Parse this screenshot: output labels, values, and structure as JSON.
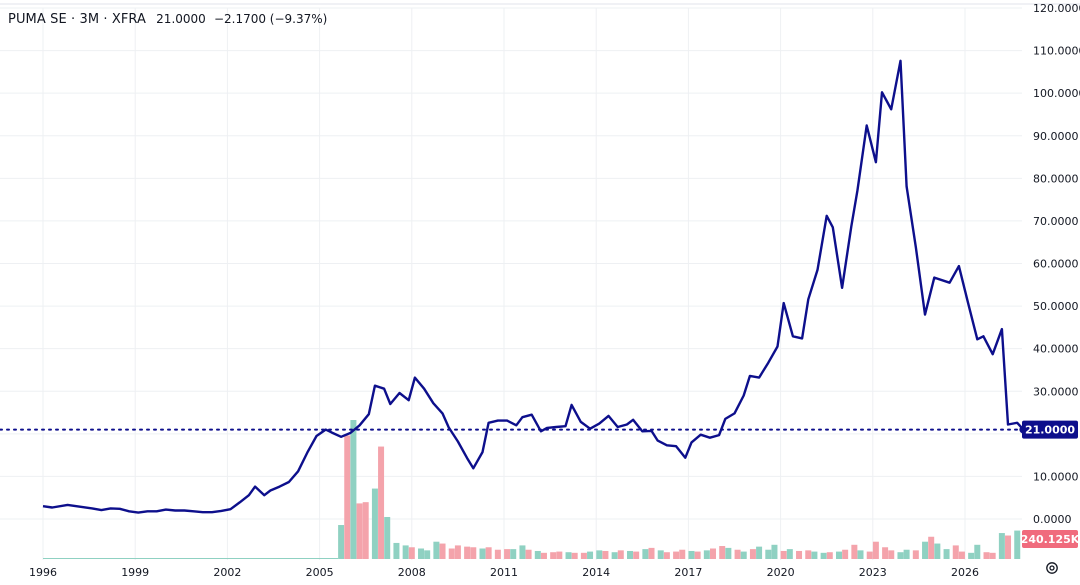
{
  "legend": {
    "symbol": "PUMA SE · 3M · XFRA",
    "last": "21.0000",
    "change": "−2.1700 (−9.37%)"
  },
  "price_badge": "21.0000",
  "volume_badge": "240.125K",
  "colors": {
    "line": "#0d0f8c",
    "grid": "#eef0f3",
    "axis_text": "#131722",
    "badge_price": "#0d0f8c",
    "badge_volume": "#f06b7d",
    "vol_up": "#8fd1c2",
    "vol_down": "#f4a3ab"
  },
  "icons": {
    "settings": "gear-icon"
  },
  "chart_data": {
    "type": "line",
    "y_ticks": [
      "0.0000",
      "10.0000",
      "20.0000",
      "30.0000",
      "40.0000",
      "50.0000",
      "60.0000",
      "70.0000",
      "80.0000",
      "90.0000",
      "100.0000",
      "110.0000",
      "120.0000"
    ],
    "x_ticks": [
      "1996",
      "1999",
      "2002",
      "2005",
      "2008",
      "2011",
      "2014",
      "2017",
      "2020",
      "2023",
      "2026"
    ],
    "ylim": [
      0,
      120
    ],
    "last_value": 21.0,
    "grid": true,
    "series": [
      {
        "values": [
          [
            1996.0,
            3.0
          ],
          [
            1996.3,
            2.7
          ],
          [
            1996.8,
            3.3
          ],
          [
            1997.2,
            2.9
          ],
          [
            1997.6,
            2.5
          ],
          [
            1997.9,
            2.1
          ],
          [
            1998.2,
            2.5
          ],
          [
            1998.5,
            2.4
          ],
          [
            1998.8,
            1.8
          ],
          [
            1999.1,
            1.5
          ],
          [
            1999.4,
            1.8
          ],
          [
            1999.7,
            1.8
          ],
          [
            2000.0,
            2.2
          ],
          [
            2000.3,
            2.0
          ],
          [
            2000.6,
            2.0
          ],
          [
            2000.9,
            1.8
          ],
          [
            2001.2,
            1.6
          ],
          [
            2001.5,
            1.6
          ],
          [
            2001.8,
            1.9
          ],
          [
            2002.1,
            2.3
          ],
          [
            2002.4,
            3.9
          ],
          [
            2002.7,
            5.6
          ],
          [
            2002.9,
            7.6
          ],
          [
            2003.2,
            5.6
          ],
          [
            2003.4,
            6.7
          ],
          [
            2003.7,
            7.6
          ],
          [
            2004.0,
            8.7
          ],
          [
            2004.3,
            11.2
          ],
          [
            2004.6,
            15.6
          ],
          [
            2004.9,
            19.5
          ],
          [
            2005.2,
            21.0
          ],
          [
            2005.4,
            20.3
          ],
          [
            2005.7,
            19.3
          ],
          [
            2006.0,
            20.2
          ],
          [
            2006.3,
            22.0
          ],
          [
            2006.6,
            24.6
          ],
          [
            2006.8,
            31.3
          ],
          [
            2007.1,
            30.6
          ],
          [
            2007.3,
            27.0
          ],
          [
            2007.6,
            29.6
          ],
          [
            2007.9,
            27.9
          ],
          [
            2008.1,
            33.2
          ],
          [
            2008.4,
            30.6
          ],
          [
            2008.7,
            27.2
          ],
          [
            2009.0,
            24.8
          ],
          [
            2009.2,
            21.5
          ],
          [
            2009.5,
            18.2
          ],
          [
            2009.8,
            14.3
          ],
          [
            2010.0,
            11.9
          ],
          [
            2010.3,
            15.7
          ],
          [
            2010.5,
            22.6
          ],
          [
            2010.8,
            23.1
          ],
          [
            2011.1,
            23.1
          ],
          [
            2011.4,
            22.0
          ],
          [
            2011.6,
            23.9
          ],
          [
            2011.9,
            24.5
          ],
          [
            2012.2,
            20.6
          ],
          [
            2012.4,
            21.4
          ],
          [
            2012.7,
            21.6
          ],
          [
            2013.0,
            21.8
          ],
          [
            2013.2,
            26.8
          ],
          [
            2013.5,
            22.8
          ],
          [
            2013.8,
            21.2
          ],
          [
            2014.1,
            22.4
          ],
          [
            2014.4,
            24.2
          ],
          [
            2014.7,
            21.6
          ],
          [
            2015.0,
            22.2
          ],
          [
            2015.2,
            23.3
          ],
          [
            2015.5,
            20.6
          ],
          [
            2015.8,
            20.7
          ],
          [
            2016.0,
            18.4
          ],
          [
            2016.3,
            17.3
          ],
          [
            2016.6,
            17.1
          ],
          [
            2016.9,
            14.4
          ],
          [
            2017.1,
            18.0
          ],
          [
            2017.4,
            19.8
          ],
          [
            2017.7,
            19.1
          ],
          [
            2018.0,
            19.7
          ],
          [
            2018.2,
            23.5
          ],
          [
            2018.5,
            24.8
          ],
          [
            2018.8,
            29.0
          ],
          [
            2019.0,
            33.6
          ],
          [
            2019.3,
            33.2
          ],
          [
            2019.6,
            36.7
          ],
          [
            2019.9,
            40.5
          ],
          [
            2020.1,
            50.7
          ],
          [
            2020.4,
            42.9
          ],
          [
            2020.7,
            42.4
          ],
          [
            2020.9,
            51.6
          ],
          [
            2021.2,
            58.5
          ],
          [
            2021.5,
            71.2
          ],
          [
            2021.7,
            68.5
          ],
          [
            2022.0,
            54.3
          ],
          [
            2022.3,
            68.7
          ],
          [
            2022.5,
            77.1
          ],
          [
            2022.8,
            92.4
          ],
          [
            2023.1,
            83.8
          ],
          [
            2023.3,
            100.2
          ],
          [
            2023.6,
            96.2
          ],
          [
            2023.9,
            107.6
          ],
          [
            2024.1,
            78.1
          ],
          [
            2024.4,
            63.9
          ],
          [
            2024.7,
            48.0
          ],
          [
            2025.0,
            56.7
          ],
          [
            2025.5,
            55.5
          ],
          [
            2025.8,
            59.4
          ],
          [
            2026.1,
            50.7
          ],
          [
            2026.4,
            42.2
          ],
          [
            2026.6,
            42.9
          ],
          [
            2026.9,
            38.7
          ],
          [
            2027.2,
            44.6
          ],
          [
            2027.4,
            22.2
          ],
          [
            2027.7,
            22.6
          ],
          [
            2027.9,
            21.0
          ]
        ]
      }
    ],
    "volume": [
      [
        2005.7,
        5.5,
        1
      ],
      [
        2005.9,
        20.0,
        0
      ],
      [
        2006.1,
        22.5,
        1
      ],
      [
        2006.3,
        9.0,
        0
      ],
      [
        2006.5,
        9.2,
        0
      ],
      [
        2006.8,
        11.4,
        1
      ],
      [
        2007.0,
        18.2,
        0
      ],
      [
        2007.2,
        6.8,
        1
      ],
      [
        2007.5,
        2.6,
        1
      ],
      [
        2007.8,
        2.2,
        1
      ],
      [
        2008.0,
        1.9,
        0
      ],
      [
        2008.3,
        1.7,
        1
      ],
      [
        2008.5,
        1.4,
        1
      ],
      [
        2008.8,
        2.8,
        1
      ],
      [
        2009.0,
        2.5,
        0
      ],
      [
        2009.3,
        1.7,
        0
      ],
      [
        2009.5,
        2.2,
        0
      ],
      [
        2009.8,
        2.0,
        0
      ],
      [
        2010.0,
        1.9,
        0
      ],
      [
        2010.3,
        1.7,
        1
      ],
      [
        2010.5,
        1.9,
        0
      ],
      [
        2010.8,
        1.5,
        0
      ],
      [
        2011.1,
        1.6,
        0
      ],
      [
        2011.3,
        1.6,
        1
      ],
      [
        2011.6,
        2.2,
        1
      ],
      [
        2011.8,
        1.5,
        0
      ],
      [
        2012.1,
        1.3,
        1
      ],
      [
        2012.3,
        1.0,
        0
      ],
      [
        2012.6,
        1.1,
        0
      ],
      [
        2012.8,
        1.2,
        0
      ],
      [
        2013.1,
        1.1,
        1
      ],
      [
        2013.3,
        1.0,
        0
      ],
      [
        2013.6,
        1.0,
        0
      ],
      [
        2013.8,
        1.2,
        1
      ],
      [
        2014.1,
        1.4,
        1
      ],
      [
        2014.3,
        1.3,
        0
      ],
      [
        2014.6,
        1.1,
        1
      ],
      [
        2014.8,
        1.4,
        0
      ],
      [
        2015.1,
        1.3,
        1
      ],
      [
        2015.3,
        1.2,
        0
      ],
      [
        2015.6,
        1.6,
        1
      ],
      [
        2015.8,
        1.8,
        0
      ],
      [
        2016.1,
        1.4,
        1
      ],
      [
        2016.3,
        1.1,
        0
      ],
      [
        2016.6,
        1.2,
        0
      ],
      [
        2016.8,
        1.5,
        0
      ],
      [
        2017.1,
        1.3,
        1
      ],
      [
        2017.3,
        1.2,
        0
      ],
      [
        2017.6,
        1.4,
        1
      ],
      [
        2017.8,
        1.7,
        0
      ],
      [
        2018.1,
        2.1,
        0
      ],
      [
        2018.3,
        1.8,
        1
      ],
      [
        2018.6,
        1.5,
        0
      ],
      [
        2018.8,
        1.2,
        1
      ],
      [
        2019.1,
        1.6,
        0
      ],
      [
        2019.3,
        2.0,
        1
      ],
      [
        2019.6,
        1.5,
        1
      ],
      [
        2019.8,
        2.3,
        1
      ],
      [
        2020.1,
        1.3,
        0
      ],
      [
        2020.3,
        1.6,
        1
      ],
      [
        2020.6,
        1.3,
        0
      ],
      [
        2020.9,
        1.4,
        0
      ],
      [
        2021.1,
        1.2,
        1
      ],
      [
        2021.4,
        1.0,
        1
      ],
      [
        2021.6,
        1.1,
        0
      ],
      [
        2021.9,
        1.2,
        1
      ],
      [
        2022.1,
        1.5,
        0
      ],
      [
        2022.4,
        2.3,
        0
      ],
      [
        2022.6,
        1.4,
        1
      ],
      [
        2022.9,
        1.2,
        0
      ],
      [
        2023.1,
        2.8,
        0
      ],
      [
        2023.4,
        1.9,
        0
      ],
      [
        2023.6,
        1.4,
        0
      ],
      [
        2023.9,
        1.1,
        1
      ],
      [
        2024.1,
        1.5,
        1
      ],
      [
        2024.4,
        1.4,
        0
      ],
      [
        2024.7,
        2.8,
        1
      ],
      [
        2024.9,
        3.6,
        0
      ],
      [
        2025.1,
        2.5,
        1
      ],
      [
        2025.4,
        1.6,
        1
      ],
      [
        2025.7,
        2.2,
        0
      ],
      [
        2025.9,
        1.2,
        0
      ],
      [
        2026.2,
        1.0,
        1
      ],
      [
        2026.4,
        2.3,
        1
      ],
      [
        2026.7,
        1.1,
        0
      ],
      [
        2026.9,
        1.0,
        0
      ],
      [
        2027.2,
        4.2,
        1
      ],
      [
        2027.4,
        3.8,
        0
      ],
      [
        2027.7,
        4.6,
        1
      ]
    ]
  }
}
